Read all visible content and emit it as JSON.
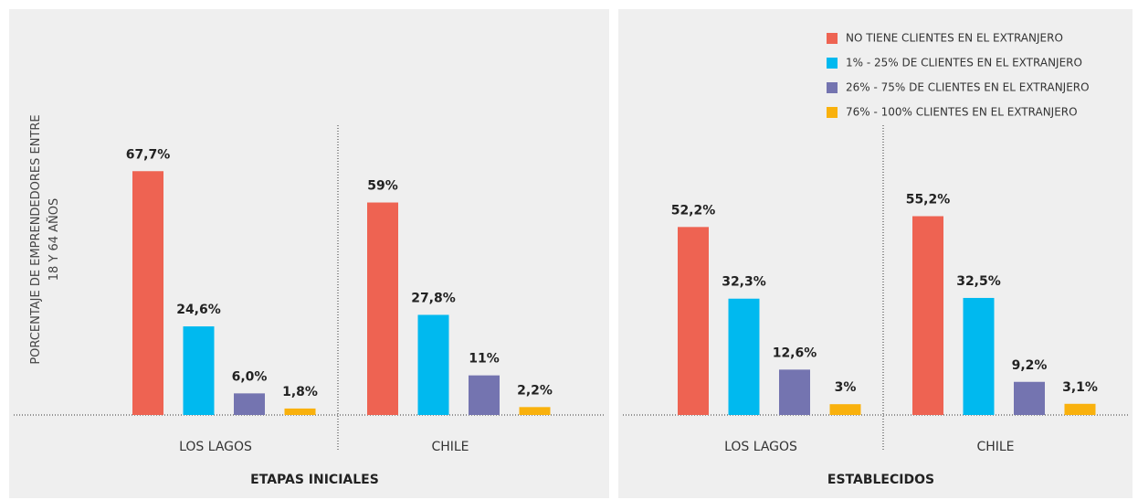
{
  "chart_data": [
    {
      "type": "bar",
      "title": "ETAPAS INICIALES",
      "y_label": "PORCENTAJE DE EMPRENDEDORES ENTRE 18 Y 64 AÑOS",
      "categories": [
        "LOS LAGOS",
        "CHILE"
      ],
      "series": [
        {
          "color": "#ee6352",
          "values": [
            67.7,
            59
          ],
          "value_labels": [
            "67,7%",
            "59%"
          ]
        },
        {
          "color": "#00b9ef",
          "values": [
            24.6,
            27.8
          ],
          "value_labels": [
            "24,6%",
            "27,8%"
          ]
        },
        {
          "color": "#7474b0",
          "values": [
            6.0,
            11
          ],
          "value_labels": [
            "6,0%",
            "11%"
          ]
        },
        {
          "color": "#f9b10d",
          "values": [
            1.8,
            2.2
          ],
          "value_labels": [
            "1,8%",
            "2,2%"
          ]
        }
      ]
    },
    {
      "type": "bar",
      "title": "ESTABLECIDOS",
      "categories": [
        "LOS LAGOS",
        "CHILE"
      ],
      "legend": "top-right",
      "series": [
        {
          "name": "NO TIENE CLIENTES EN EL EXTRANJERO",
          "color": "#ee6352",
          "values": [
            52.2,
            55.2
          ],
          "value_labels": [
            "52,2%",
            "55,2%"
          ]
        },
        {
          "name": "1% - 25% DE CLIENTES EN EL EXTRANJERO",
          "color": "#00b9ef",
          "values": [
            32.3,
            32.5
          ],
          "value_labels": [
            "32,3%",
            "32,5%"
          ]
        },
        {
          "name": "26% - 75% DE CLIENTES EN EL EXTRANJERO",
          "color": "#7474b0",
          "values": [
            12.6,
            9.2
          ],
          "value_labels": [
            "12,6%",
            "9,2%"
          ]
        },
        {
          "name": "76% - 100% CLIENTES EN EL EXTRANJERO",
          "color": "#f9b10d",
          "values": [
            3,
            3.1
          ],
          "value_labels": [
            "3%",
            "3,1%"
          ]
        }
      ]
    }
  ]
}
